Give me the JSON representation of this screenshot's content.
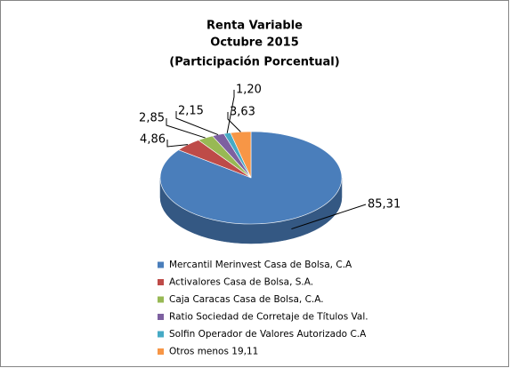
{
  "chart_data": {
    "type": "pie3d",
    "title": [
      "Renta Variable",
      "Octubre 2015",
      "(Participación Porcentual)"
    ],
    "categories": [
      "Mercantil Merinvest Casa de Bolsa, C.A",
      "Activalores Casa de Bolsa, S.A.",
      "Caja Caracas Casa de Bolsa, C.A.",
      "Ratio Sociedad de Corretaje de Títulos Val.",
      "Solfin Operador de Valores Autorizado C.A",
      "Otros menos 19,11"
    ],
    "values": [
      85.31,
      4.86,
      2.85,
      2.15,
      1.2,
      3.63
    ],
    "value_labels": [
      "85,31",
      "4,86",
      "2,85",
      "2,15",
      "1,20",
      "3,63"
    ],
    "colors": [
      "#4a7ebb",
      "#be4b48",
      "#98b954",
      "#7d60a0",
      "#46aac5",
      "#f79646"
    ],
    "legend": "bottom"
  }
}
